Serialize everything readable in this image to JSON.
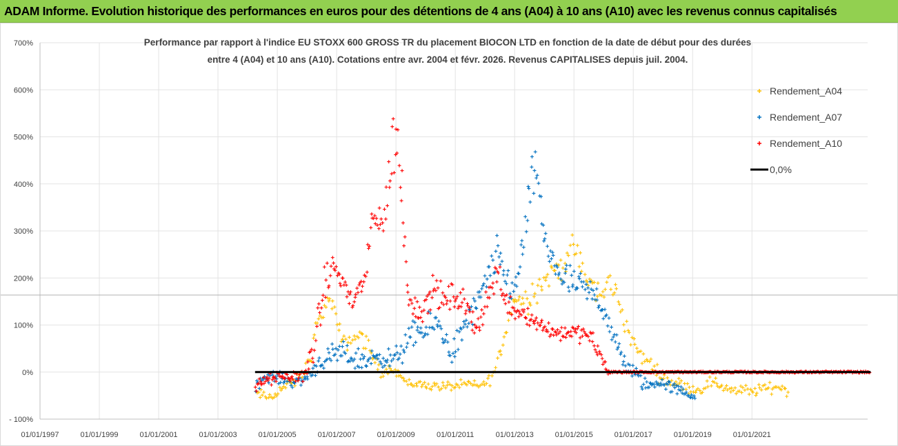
{
  "banner": {
    "title": "ADAM Informe. Evolution historique des performances en euros pour des détentions de 4 ans (A04) à 10 ans (A10) avec les revenus connus capitalisés"
  },
  "chart_data": {
    "type": "scatter",
    "title_line1": "Performance par rapport à l'indice EU STOXX 600 GROSS TR  du placement BIOCON LTD en fonction de la date de début pour des durées",
    "title_line2": "entre 4 (A04) et 10 ans (A10). Cotations entre avr. 2004 et févr. 2026. Revenus CAPITALISES depuis juil. 2004.",
    "xlim": [
      1997.0,
      2024.9
    ],
    "ylim": [
      -100,
      700
    ],
    "y_ticks": [
      -100,
      0,
      100,
      200,
      300,
      400,
      500,
      600,
      700
    ],
    "y_tick_labels": [
      "- 100%",
      "0%",
      "100%",
      "200%",
      "300%",
      "400%",
      "500%",
      "600%",
      "700%"
    ],
    "x_ticks": [
      1997,
      1999,
      2001,
      2003,
      2005,
      2007,
      2009,
      2011,
      2013,
      2015,
      2017,
      2019,
      2021
    ],
    "x_tick_labels": [
      "01/01/1997",
      "01/01/1999",
      "01/01/2001",
      "01/01/2003",
      "01/01/2005",
      "01/01/2007",
      "01/01/2009",
      "01/01/2011",
      "01/01/2013",
      "01/01/2015",
      "01/01/2017",
      "01/01/2019",
      "01/01/2021"
    ],
    "gridlines": true,
    "legend_position": "top-right",
    "reference_line": {
      "name": "0,0%",
      "y": 0,
      "x_range": [
        2004.25,
        2025.0
      ],
      "color": "#000000"
    },
    "series": [
      {
        "name": "Rendement_A04",
        "color": "#ffc000",
        "x": [
          2004.25,
          2004.5,
          2004.8,
          2005.0,
          2005.3,
          2005.6,
          2005.9,
          2006.1,
          2006.3,
          2006.6,
          2006.8,
          2007.0,
          2007.2,
          2007.5,
          2007.8,
          2008.1,
          2008.3,
          2008.5,
          2008.7,
          2008.9,
          2009.1,
          2009.4,
          2009.8,
          2010.2,
          2010.6,
          2011.0,
          2011.4,
          2011.8,
          2012.1,
          2012.4,
          2012.7,
          2013.0,
          2013.3,
          2013.6,
          2013.9,
          2014.1,
          2014.4,
          2014.7,
          2015.0,
          2015.2,
          2015.5,
          2015.8,
          2016.0,
          2016.2,
          2016.4,
          2016.7,
          2017.0,
          2017.3,
          2017.6,
          2017.9,
          2018.3,
          2018.8,
          2019.2,
          2019.6,
          2020.0,
          2020.5,
          2021.0,
          2021.5,
          2022.0,
          2022.25
        ],
        "y": [
          -45,
          -50,
          -55,
          -40,
          -30,
          -20,
          0,
          30,
          90,
          140,
          155,
          110,
          60,
          70,
          80,
          50,
          20,
          0,
          5,
          10,
          -5,
          -25,
          -25,
          -30,
          -30,
          -30,
          -25,
          -30,
          -20,
          10,
          90,
          160,
          150,
          170,
          190,
          200,
          220,
          230,
          270,
          230,
          190,
          170,
          160,
          200,
          170,
          110,
          60,
          30,
          20,
          -10,
          -20,
          -30,
          -40,
          -20,
          -30,
          -40,
          -40,
          -35,
          -30,
          -45
        ],
        "spread": [
          8,
          10,
          10,
          10,
          10,
          10,
          10,
          15,
          20,
          15,
          12,
          15,
          15,
          15,
          15,
          15,
          10,
          10,
          8,
          8,
          8,
          8,
          8,
          8,
          8,
          8,
          8,
          8,
          10,
          15,
          20,
          20,
          25,
          25,
          25,
          25,
          25,
          25,
          25,
          25,
          25,
          20,
          20,
          20,
          20,
          20,
          15,
          12,
          12,
          12,
          10,
          10,
          10,
          10,
          10,
          10,
          10,
          10,
          10,
          8
        ],
        "count": 380
      },
      {
        "name": "Rendement_A07",
        "color": "#0070c0",
        "x": [
          2004.25,
          2004.6,
          2004.9,
          2005.2,
          2005.5,
          2005.8,
          2006.1,
          2006.4,
          2006.8,
          2007.1,
          2007.4,
          2007.7,
          2008.0,
          2008.3,
          2008.5,
          2008.8,
          2009.1,
          2009.4,
          2009.7,
          2010.0,
          2010.3,
          2010.6,
          2010.9,
          2011.2,
          2011.5,
          2011.8,
          2012.1,
          2012.4,
          2012.7,
          2013.0,
          2013.2,
          2013.4,
          2013.6,
          2013.8,
          2014.0,
          2014.3,
          2014.6,
          2014.9,
          2015.2,
          2015.5,
          2015.8,
          2016.1,
          2016.4,
          2016.7,
          2017.0,
          2017.3,
          2017.6,
          2017.9,
          2018.2,
          2018.6,
          2019.0,
          2019.1
        ],
        "y": [
          -30,
          -10,
          -10,
          -15,
          -20,
          -20,
          -5,
          20,
          30,
          40,
          35,
          25,
          25,
          30,
          40,
          20,
          40,
          60,
          90,
          80,
          110,
          80,
          40,
          80,
          120,
          150,
          200,
          250,
          200,
          170,
          240,
          320,
          410,
          420,
          270,
          240,
          200,
          190,
          180,
          170,
          160,
          120,
          60,
          20,
          0,
          -20,
          -30,
          -20,
          -30,
          -40,
          -50,
          -55
        ],
        "spread": [
          10,
          10,
          10,
          10,
          10,
          10,
          12,
          15,
          20,
          20,
          20,
          20,
          20,
          20,
          20,
          20,
          20,
          25,
          25,
          25,
          25,
          25,
          25,
          25,
          25,
          25,
          30,
          30,
          30,
          30,
          30,
          40,
          40,
          40,
          30,
          30,
          30,
          30,
          25,
          25,
          25,
          25,
          20,
          20,
          15,
          15,
          10,
          10,
          10,
          10,
          8,
          5
        ],
        "count": 420
      },
      {
        "name": "Rendement_A10",
        "color": "#ff0000",
        "x": [
          2004.25,
          2004.5,
          2004.8,
          2005.1,
          2005.4,
          2005.7,
          2006.0,
          2006.3,
          2006.6,
          2006.9,
          2007.2,
          2007.5,
          2007.8,
          2008.0,
          2008.2,
          2008.4,
          2008.6,
          2008.8,
          2009.0,
          2009.2,
          2009.4,
          2009.7,
          2010.0,
          2010.3,
          2010.6,
          2010.9,
          2011.2,
          2011.5,
          2011.8,
          2012.1,
          2012.4,
          2012.7,
          2013.0,
          2013.3,
          2013.6,
          2013.9,
          2014.2,
          2014.5,
          2014.8,
          2015.1,
          2015.4,
          2015.7,
          2016.0,
          2016.2
        ],
        "y": [
          -35,
          -20,
          -15,
          -10,
          -10,
          -10,
          0,
          80,
          180,
          230,
          190,
          150,
          180,
          200,
          330,
          330,
          310,
          450,
          500,
          380,
          170,
          130,
          140,
          180,
          150,
          160,
          150,
          120,
          100,
          160,
          210,
          160,
          130,
          130,
          110,
          100,
          90,
          80,
          90,
          80,
          80,
          60,
          20,
          -5
        ],
        "spread": [
          10,
          10,
          10,
          10,
          10,
          10,
          20,
          40,
          30,
          25,
          25,
          25,
          25,
          25,
          30,
          25,
          30,
          60,
          70,
          60,
          25,
          25,
          25,
          25,
          25,
          25,
          25,
          25,
          25,
          25,
          30,
          25,
          20,
          20,
          20,
          20,
          15,
          15,
          15,
          15,
          15,
          15,
          15,
          8
        ],
        "count": 360,
        "tail_from": 2016.2,
        "tail_to": 2025.0,
        "tail_y": 0
      }
    ]
  }
}
